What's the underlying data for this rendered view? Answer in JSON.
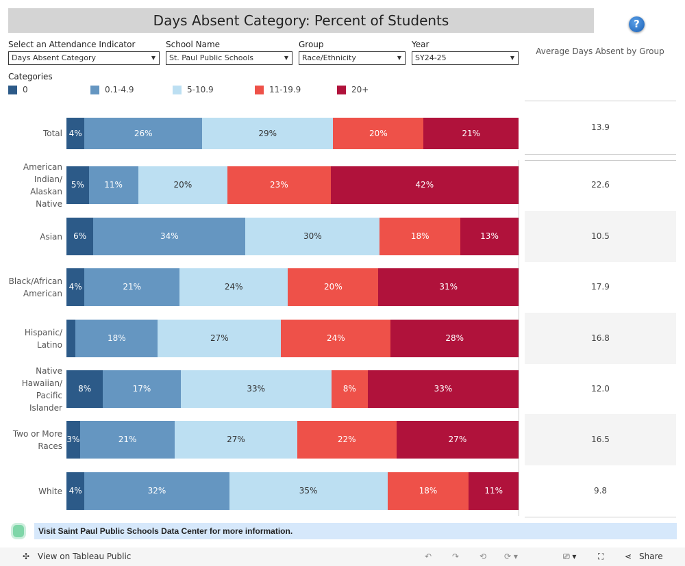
{
  "title": "Days Absent Category: Percent of Students",
  "filters": [
    {
      "label": "Select an Attendance Indicator",
      "value": "Days Absent Category"
    },
    {
      "label": "School Name",
      "value": "St. Paul Public Schools"
    },
    {
      "label": "Group",
      "value": "Race/Ethnicity"
    },
    {
      "label": "Year",
      "value": "SY24-25"
    }
  ],
  "avg_header": "Average Days Absent by Group",
  "legend": {
    "title": "Categories",
    "items": [
      {
        "label": "0",
        "color": "#2c5a88"
      },
      {
        "label": "0.1-4.9",
        "color": "#6596c1"
      },
      {
        "label": "5-10.9",
        "color": "#bcdff2"
      },
      {
        "label": "11-19.9",
        "color": "#ee5149"
      },
      {
        "label": "20+",
        "color": "#b0123b"
      }
    ]
  },
  "chart_data": {
    "type": "bar",
    "stacked": true,
    "orientation": "horizontal",
    "unit": "percent",
    "series_names": [
      "0",
      "0.1-4.9",
      "5-10.9",
      "11-19.9",
      "20+"
    ],
    "rows": [
      {
        "label": "Total",
        "values": [
          4,
          26,
          29,
          20,
          21
        ],
        "avg": "13.9"
      },
      {
        "label": "American Indian/ Alaskan Native",
        "values": [
          5,
          11,
          20,
          23,
          42
        ],
        "avg": "22.6"
      },
      {
        "label": "Asian",
        "values": [
          6,
          34,
          30,
          18,
          13
        ],
        "avg": "10.5"
      },
      {
        "label": "Black/African American",
        "values": [
          4,
          21,
          24,
          20,
          31
        ],
        "avg": "17.9"
      },
      {
        "label": "Hispanic/ Latino",
        "values": [
          2,
          18,
          27,
          24,
          28
        ],
        "avg": "16.8",
        "hide_first_label": true
      },
      {
        "label": "Native Hawaiian/ Pacific Islander",
        "values": [
          8,
          17,
          33,
          8,
          33
        ],
        "avg": "12.0"
      },
      {
        "label": "Two or More Races",
        "values": [
          3,
          21,
          27,
          22,
          27
        ],
        "avg": "16.5"
      },
      {
        "label": "White",
        "values": [
          4,
          32,
          35,
          18,
          11
        ],
        "avg": "9.8"
      }
    ]
  },
  "footer": {
    "text": "Visit Saint Paul Public Schools Data Center for more information."
  },
  "toolbar": {
    "view": "View on Tableau Public",
    "share": "Share"
  }
}
